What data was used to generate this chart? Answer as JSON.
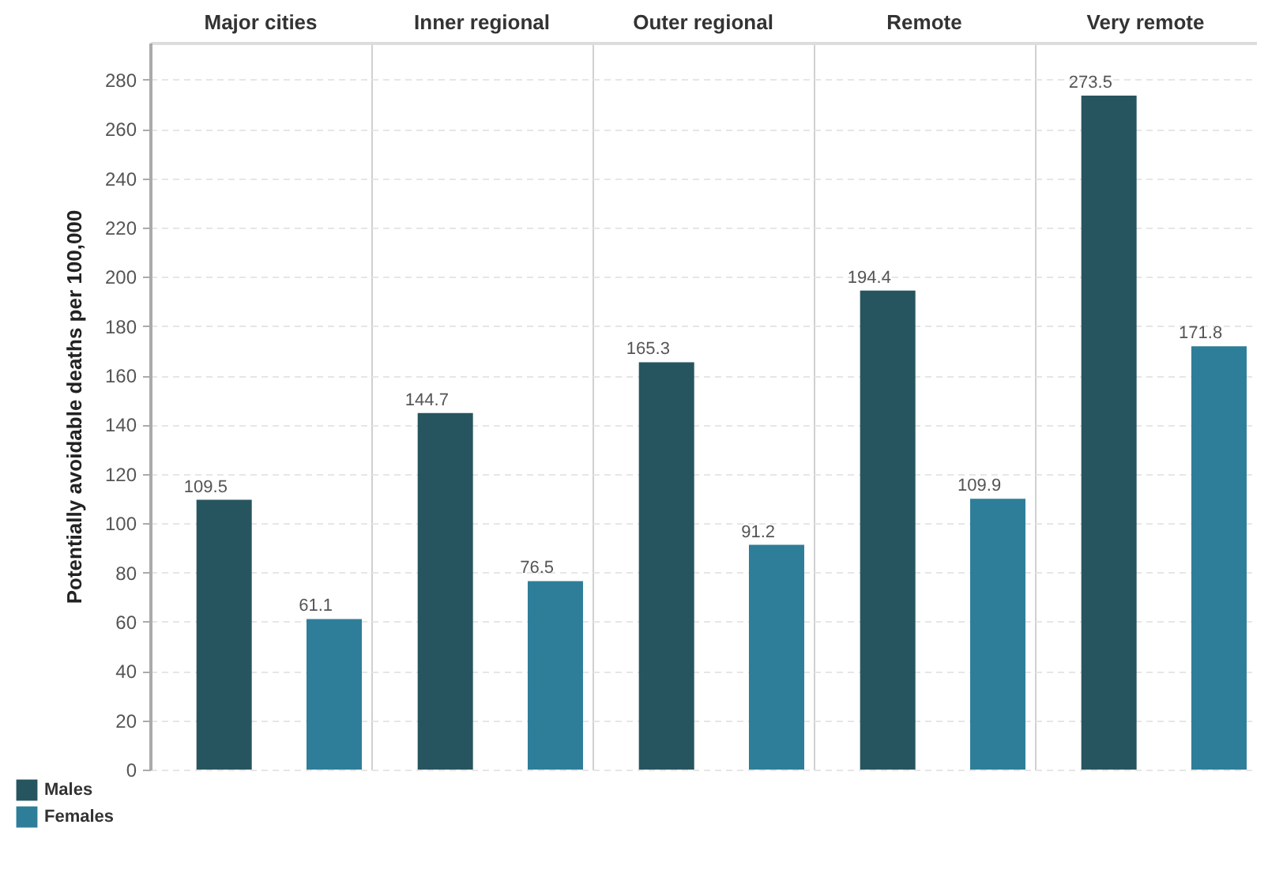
{
  "chart_data": {
    "type": "bar",
    "ylabel": "Potentially avoidable deaths per 100,000",
    "categories": [
      "Major cities",
      "Inner regional",
      "Outer regional",
      "Remote",
      "Very remote"
    ],
    "series": [
      {
        "name": "Males",
        "color": "#27555f",
        "values": [
          109.5,
          144.7,
          165.3,
          194.4,
          273.5
        ]
      },
      {
        "name": "Females",
        "color": "#2e7e99",
        "values": [
          61.1,
          76.5,
          91.2,
          109.9,
          171.8
        ]
      }
    ],
    "ylim": [
      0,
      295
    ],
    "yticks": [
      0,
      20,
      40,
      60,
      80,
      100,
      120,
      140,
      160,
      180,
      200,
      220,
      240,
      260,
      280
    ],
    "grid": true,
    "legend": "bottom left",
    "data_labels": true
  }
}
